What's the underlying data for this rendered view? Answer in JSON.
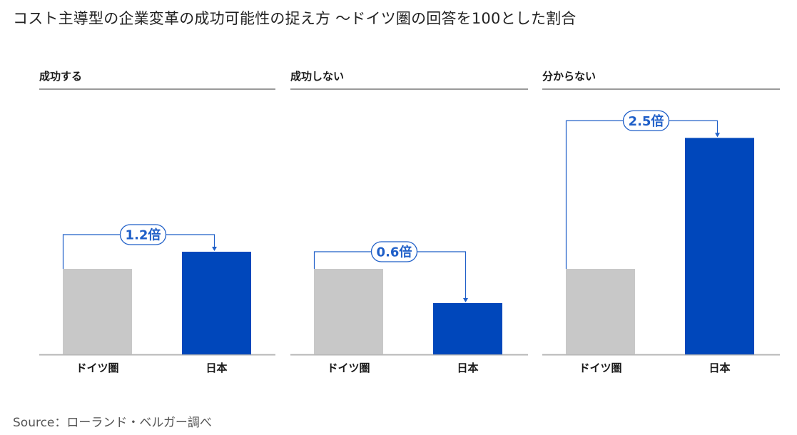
{
  "title": "コスト主導型の企業変革の成功可能性の捉え方 ～ドイツ圏の回答を100とした割合",
  "source": "Source：ローランド・ベルガー調べ",
  "colors": {
    "germany": "#c8c8c8",
    "japan": "#0047bb",
    "accent": "#1f5fc8"
  },
  "chart_data": [
    {
      "type": "bar",
      "title": "成功する",
      "categories": [
        "ドイツ圏",
        "日本"
      ],
      "values": [
        100,
        120
      ],
      "ratio_label": "1.2倍"
    },
    {
      "type": "bar",
      "title": "成功しない",
      "categories": [
        "ドイツ圏",
        "日本"
      ],
      "values": [
        100,
        60
      ],
      "ratio_label": "0.6倍"
    },
    {
      "type": "bar",
      "title": "分からない",
      "categories": [
        "ドイツ圏",
        "日本"
      ],
      "values": [
        100,
        253
      ],
      "ratio_label": "2.5倍"
    }
  ]
}
